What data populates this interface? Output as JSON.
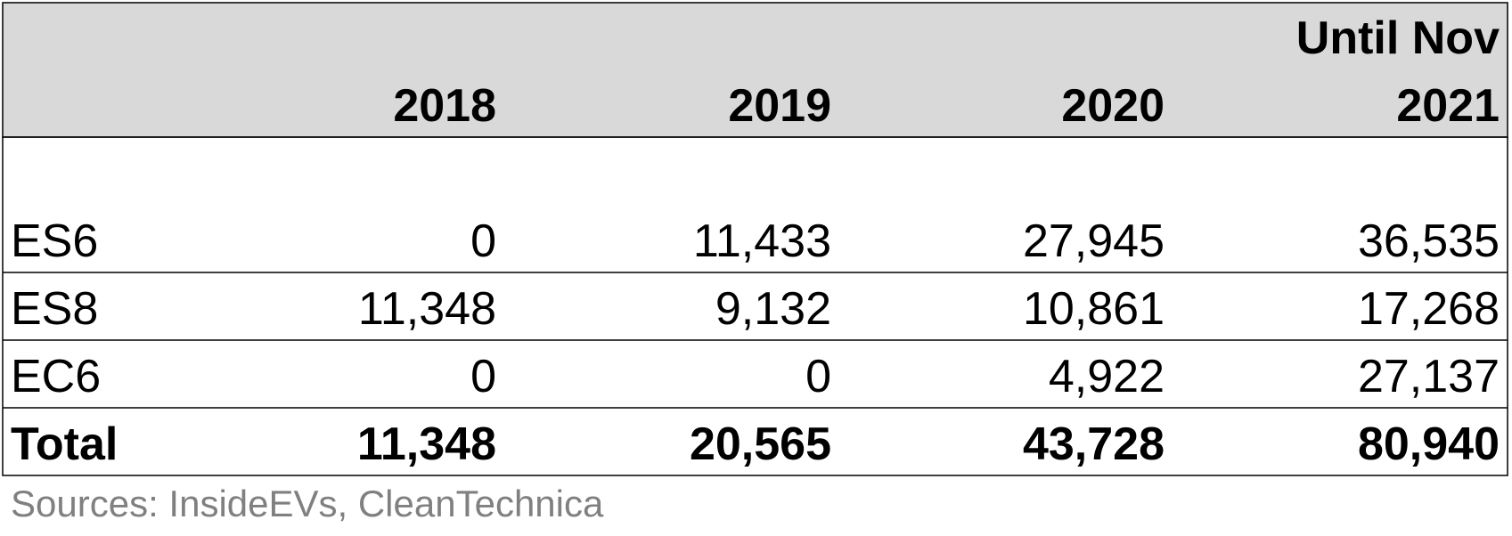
{
  "table": {
    "columns": [
      [
        "2018"
      ],
      [
        "2019"
      ],
      [
        "2020"
      ],
      [
        "Until Nov",
        "2021"
      ]
    ],
    "rows": [
      {
        "label": "ES6",
        "values": [
          "0",
          "11,433",
          "27,945",
          "36,535"
        ]
      },
      {
        "label": "ES8",
        "values": [
          "11,348",
          "9,132",
          "10,861",
          "17,268"
        ]
      },
      {
        "label": "EC6",
        "values": [
          "0",
          "0",
          "4,922",
          "27,137"
        ]
      },
      {
        "label": "Total",
        "values": [
          "11,348",
          "20,565",
          "43,728",
          "80,940"
        ]
      }
    ]
  },
  "source": "Sources: InsideEVs, CleanTechnica"
}
